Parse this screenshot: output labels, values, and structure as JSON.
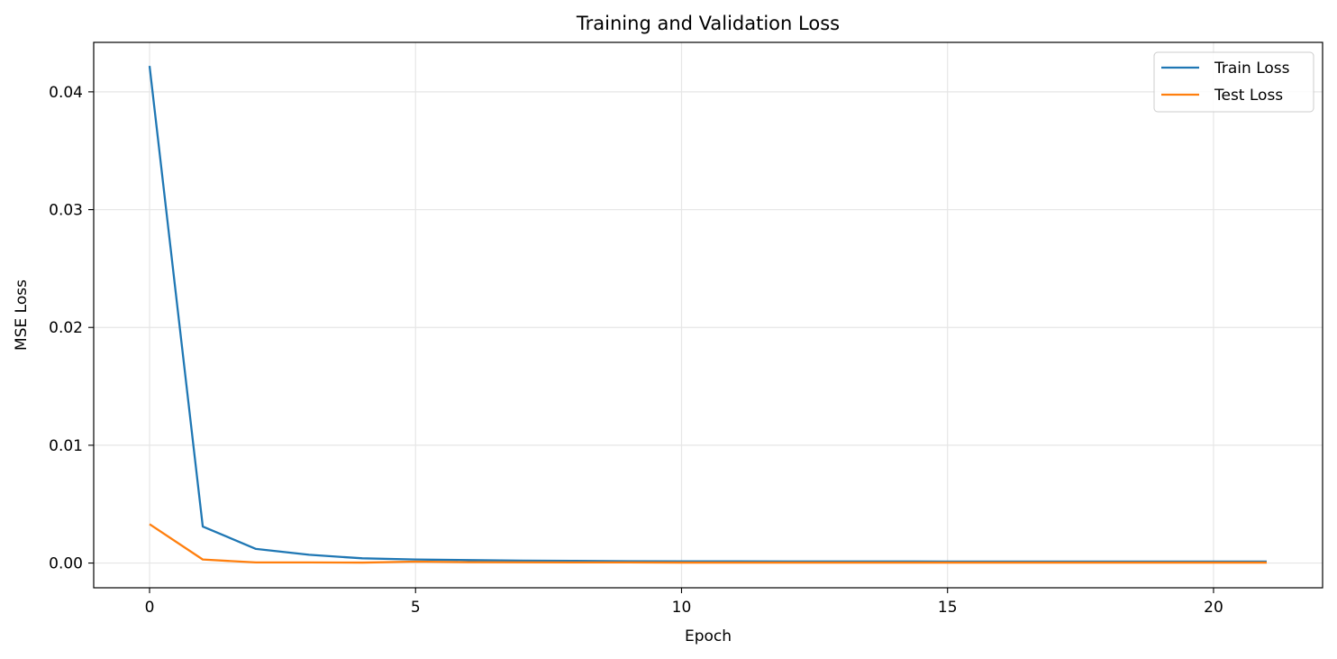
{
  "chart_data": {
    "type": "line",
    "title": "Training and Validation Loss",
    "xlabel": "Epoch",
    "ylabel": "MSE Loss",
    "xlim": [
      -1.05,
      22.05
    ],
    "ylim": [
      -0.0021,
      0.0442
    ],
    "x": [
      0,
      1,
      2,
      3,
      4,
      5,
      6,
      7,
      8,
      9,
      10,
      11,
      12,
      13,
      14,
      15,
      16,
      17,
      18,
      19,
      20,
      21
    ],
    "xticks": [
      0,
      5,
      10,
      15,
      20
    ],
    "xtick_labels": [
      "0",
      "5",
      "10",
      "15",
      "20"
    ],
    "yticks": [
      0.0,
      0.01,
      0.02,
      0.03,
      0.04
    ],
    "ytick_labels": [
      "0.00",
      "0.01",
      "0.02",
      "0.03",
      "0.04"
    ],
    "grid": true,
    "legend_position": "top-right",
    "series": [
      {
        "name": "Train Loss",
        "color": "#1f77b4",
        "values": [
          0.0422,
          0.0031,
          0.0012,
          0.0007,
          0.0004,
          0.0003,
          0.00025,
          0.0002,
          0.00018,
          0.00016,
          0.00015,
          0.00015,
          0.00014,
          0.00014,
          0.00014,
          0.00013,
          0.00013,
          0.00013,
          0.00013,
          0.00013,
          0.00013,
          0.00013
        ]
      },
      {
        "name": "Test Loss",
        "color": "#ff7f0e",
        "values": [
          0.0033,
          0.0003,
          5e-05,
          5e-05,
          4e-05,
          0.00012,
          7e-05,
          6e-05,
          5e-05,
          5e-05,
          4e-05,
          4e-05,
          4e-05,
          4e-05,
          4e-05,
          4e-05,
          4e-05,
          4e-05,
          4e-05,
          4e-05,
          4e-05,
          4e-05
        ]
      }
    ]
  }
}
